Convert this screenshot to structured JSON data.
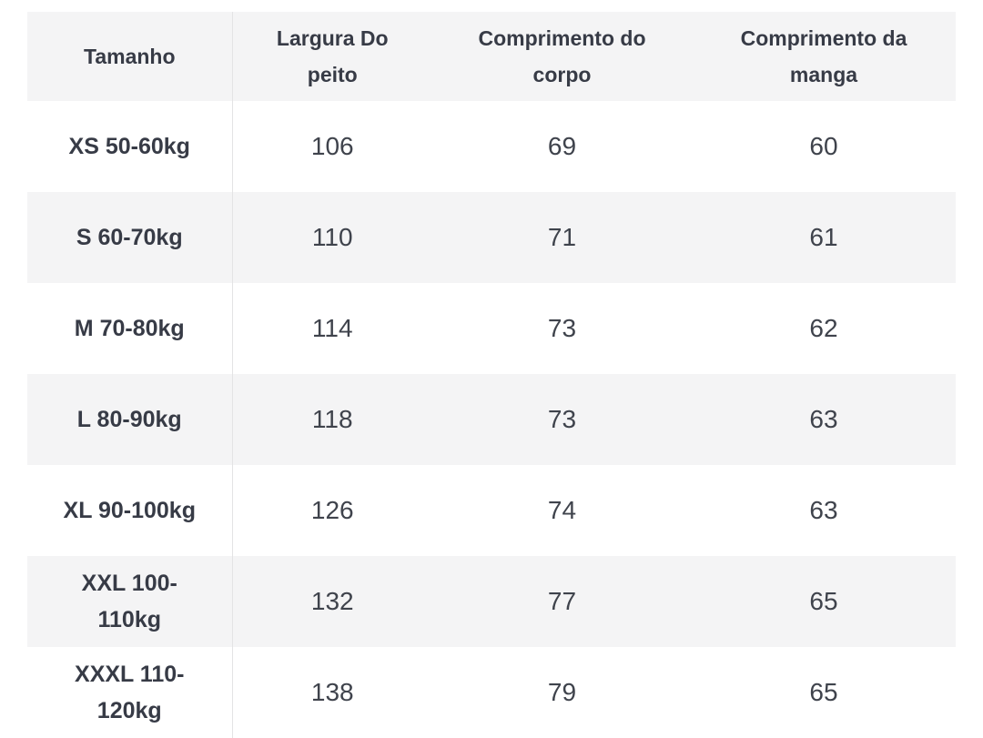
{
  "table": {
    "columns": [
      {
        "label": "Tamanho"
      },
      {
        "label": "Largura Do peito"
      },
      {
        "label": "Comprimento do corpo"
      },
      {
        "label": "Comprimento da manga"
      }
    ],
    "rows": [
      {
        "size": "XS 50-60kg",
        "chest": "106",
        "body": "69",
        "sleeve": "60"
      },
      {
        "size": "S 60-70kg",
        "chest": "110",
        "body": "71",
        "sleeve": "61"
      },
      {
        "size": "M 70-80kg",
        "chest": "114",
        "body": "73",
        "sleeve": "62"
      },
      {
        "size": "L 80-90kg",
        "chest": "118",
        "body": "73",
        "sleeve": "63"
      },
      {
        "size": "XL 90-100kg",
        "chest": "126",
        "body": "74",
        "sleeve": "63"
      },
      {
        "size": "XXL 100-110kg",
        "chest": "132",
        "body": "77",
        "sleeve": "65"
      },
      {
        "size": "XXXL 110-120kg",
        "chest": "138",
        "body": "79",
        "sleeve": "65"
      }
    ]
  },
  "colors": {
    "stripe": "#f4f4f5",
    "divider": "#e3e3e5",
    "text_strong": "#373b46",
    "text_data": "#3f434c",
    "page_background": "#ffffff"
  }
}
